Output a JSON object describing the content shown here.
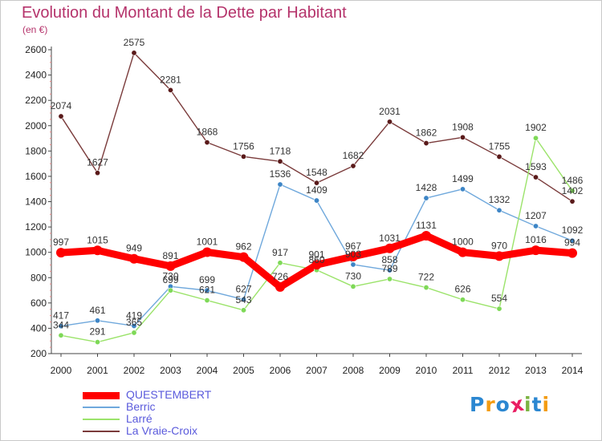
{
  "chart_data": {
    "type": "line",
    "title": "Evolution du Montant de la Dette par Habitant",
    "ylabel": "(en €)",
    "xlabel": "",
    "categories": [
      "2000",
      "2001",
      "2002",
      "2003",
      "2004",
      "2005",
      "2006",
      "2007",
      "2008",
      "2009",
      "2010",
      "2011",
      "2012",
      "2013",
      "2014"
    ],
    "ylim": [
      200,
      2600
    ],
    "yticks": [
      200,
      400,
      600,
      800,
      1000,
      1200,
      1400,
      1600,
      1800,
      2000,
      2200,
      2400,
      2600
    ],
    "grid": false,
    "legend_position": "bottom-left",
    "series": [
      {
        "name": "QUESTEMBERT",
        "color": "#ff0000",
        "marker": "#ff0000",
        "values": [
          997,
          1015,
          949,
          891,
          1001,
          962,
          726,
          901,
          967,
          1031,
          1131,
          1000,
          970,
          1016,
          994
        ],
        "labels": [
          "997",
          "1015",
          "949",
          "891",
          "1001",
          "962",
          "726",
          "901",
          "967",
          "1031",
          "1131",
          "1000",
          "970",
          "1016",
          "994"
        ]
      },
      {
        "name": "Berric",
        "color": "#6fa8dc",
        "marker": "#3d85c6",
        "values": [
          417,
          461,
          419,
          730,
          699,
          627,
          1536,
          1409,
          903,
          858,
          1428,
          1499,
          1332,
          1207,
          1092
        ],
        "labels": [
          "417",
          "461",
          "419",
          "730",
          "699",
          "627",
          "1536",
          "1409",
          "903",
          "858",
          "1428",
          "1499",
          "1332",
          "1207",
          "1092"
        ]
      },
      {
        "name": "Larré",
        "color": "#9be36a",
        "marker": "#7ed957",
        "values": [
          344,
          291,
          365,
          699,
          621,
          543,
          917,
          860,
          730,
          789,
          722,
          626,
          554,
          1902,
          1486
        ],
        "labels": [
          "344",
          "291",
          "365",
          "699",
          "621",
          "543",
          "917",
          "860",
          "730",
          "789",
          "722",
          "626",
          "554",
          "1902",
          "1486"
        ]
      },
      {
        "name": "La Vraie-Croix",
        "color": "#7a3b3b",
        "marker": "#5a1a1a",
        "values": [
          2074,
          1627,
          2575,
          2281,
          1868,
          1756,
          1718,
          1548,
          1682,
          2031,
          1862,
          1908,
          1755,
          1593,
          1402
        ],
        "labels": [
          "2074",
          "1627",
          "2575",
          "2281",
          "1868",
          "1756",
          "1718",
          "1548",
          "1682",
          "2031",
          "1862",
          "1908",
          "1755",
          "1593",
          "1402"
        ]
      }
    ]
  },
  "logo": {
    "text": "Proxiti",
    "colors": [
      "#2b87d1",
      "#f39c12",
      "#2b87d1",
      "#e91e63",
      "#7cb342",
      "#2b87d1",
      "#f39c12"
    ]
  }
}
